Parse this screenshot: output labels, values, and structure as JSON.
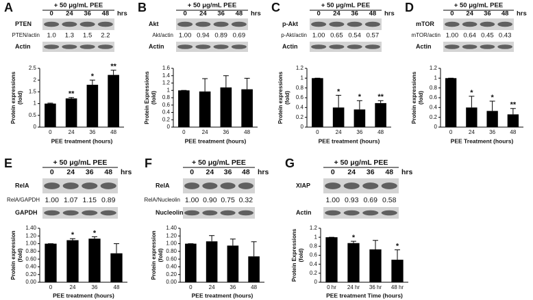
{
  "chart_data": [
    {
      "type": "bar",
      "panel": "A",
      "treatment": "+ 50 μg/mL PEE",
      "doses": [
        "0",
        "24",
        "36",
        "48"
      ],
      "unit": "hrs",
      "protein": "PTEN",
      "ratio_label": "PTEN/actin",
      "ratios": [
        "1.0",
        "1.3",
        "1.5",
        "2.2"
      ],
      "loading": "Actin",
      "categories": [
        "0",
        "24",
        "36",
        "48"
      ],
      "values": [
        1,
        1.22,
        1.8,
        2.22
      ],
      "errors": [
        0.02,
        0.04,
        0.2,
        0.2
      ],
      "stars": [
        null,
        "**",
        "*",
        "**"
      ],
      "ylabel": [
        "Protein expressions",
        "(fold)"
      ],
      "xlabel": "PEE treatment (hours)",
      "ylim": [
        0,
        2.5
      ],
      "yticks": [
        0,
        0.5,
        1,
        1.5,
        2,
        2.5
      ],
      "color": "#000000"
    },
    {
      "type": "bar",
      "panel": "B",
      "treatment": "+ 50 μg/mL PEE",
      "doses": [
        "0",
        "24",
        "36",
        "48"
      ],
      "unit": "hrs",
      "protein": "Akt",
      "ratio_label": "Akt/actin",
      "ratios": [
        "1.00",
        "0.94",
        "0.89",
        "0.69"
      ],
      "loading": "Actin",
      "categories": [
        "0",
        "24",
        "36",
        "48"
      ],
      "values": [
        1,
        0.97,
        1.08,
        1.03
      ],
      "errors": [
        0,
        0.35,
        0.32,
        0.3
      ],
      "stars": [
        null,
        null,
        null,
        null
      ],
      "ylabel": [
        "Protein Expressions",
        "(fold)"
      ],
      "xlabel": "PEE treatment  (hours)",
      "ylim": [
        0,
        1.6
      ],
      "yticks": [
        0,
        0.2,
        0.4,
        0.6,
        0.8,
        1,
        1.2,
        1.4,
        1.6
      ],
      "color": "#000000"
    },
    {
      "type": "bar",
      "panel": "C",
      "treatment": "+ 50 μg/mL PEE",
      "doses": [
        "0",
        "24",
        "36",
        "48"
      ],
      "unit": "hrs",
      "protein": "p-Akt",
      "ratio_label": "p-Akt/actin",
      "ratios": [
        "1.00",
        "0.65",
        "0.54",
        "0.57"
      ],
      "loading": "Actin",
      "categories": [
        "0",
        "24",
        "36",
        "48"
      ],
      "values": [
        1,
        0.4,
        0.36,
        0.49
      ],
      "errors": [
        0,
        0.25,
        0.18,
        0.05
      ],
      "stars": [
        null,
        "*",
        "*",
        "**"
      ],
      "ylabel": [
        "Protein expressions",
        "(fold)"
      ],
      "xlabel": "PEE treatment (hours)",
      "ylim": [
        0,
        1.2
      ],
      "yticks": [
        0,
        0.2,
        0.4,
        0.6,
        0.8,
        1,
        1.2
      ],
      "color": "#000000"
    },
    {
      "type": "bar",
      "panel": "D",
      "treatment": "+ 50 μg/mL PEE",
      "doses": [
        "0",
        "24",
        "36",
        "48"
      ],
      "unit": "hrs",
      "protein": "mTOR",
      "ratio_label": "mTOR/actin",
      "ratios": [
        "1.00",
        "0.64",
        "0.45",
        "0.43"
      ],
      "loading": "Actin",
      "categories": [
        "0",
        "24",
        "36",
        "48"
      ],
      "values": [
        1,
        0.4,
        0.33,
        0.26
      ],
      "errors": [
        0,
        0.23,
        0.2,
        0.12
      ],
      "stars": [
        null,
        "*",
        "*",
        "**"
      ],
      "ylabel": [
        "Protein expressions",
        "(fold)"
      ],
      "xlabel": "PEE Treatment (hours)",
      "ylim": [
        0,
        1.2
      ],
      "yticks": [
        0,
        0.2,
        0.4,
        0.6,
        0.8,
        1,
        1.2
      ],
      "color": "#000000"
    },
    {
      "type": "bar",
      "panel": "E",
      "treatment": "+ 50 μg/mL PEE",
      "doses": [
        "0",
        "24",
        "36",
        "48"
      ],
      "unit": "hrs",
      "protein": "RelA",
      "ratio_label": "RelA/GAPDH",
      "ratios": [
        "1.00",
        "1.07",
        "1.15",
        "0.89"
      ],
      "loading": "GAPDH",
      "categories": [
        "0",
        "24",
        "36",
        "48"
      ],
      "values": [
        1,
        1.09,
        1.13,
        0.75
      ],
      "errors": [
        0,
        0.04,
        0.05,
        0.25
      ],
      "stars": [
        null,
        "*",
        "*",
        null
      ],
      "ylabel": [
        "Protein expression",
        "(fold)"
      ],
      "xlabel": "PEE treatment (hours)",
      "ylim": [
        0,
        1.4
      ],
      "yticks": [
        {
          "value": 0,
          "label": "0.00"
        },
        {
          "value": 0.2,
          "label": "0.20"
        },
        {
          "value": 0.4,
          "label": "0.40"
        },
        {
          "value": 0.6,
          "label": "0.60"
        },
        {
          "value": 0.8,
          "label": "0.80"
        },
        {
          "value": 1,
          "label": "1.00"
        },
        {
          "value": 1.2,
          "label": "1.20"
        },
        {
          "value": 1.4,
          "label": "1.40"
        }
      ],
      "color": "#000000"
    },
    {
      "type": "bar",
      "panel": "F",
      "treatment": "+ 50 μg/mL PEE",
      "doses": [
        "0",
        "24",
        "36",
        "48"
      ],
      "unit": "hrs",
      "protein": "RelA",
      "ratio_label": "RelA/Nucleolin",
      "ratios": [
        "1.00",
        "0.90",
        "0.75",
        "0.32"
      ],
      "loading": "Nucleolin",
      "categories": [
        "0",
        "24",
        "36",
        "48"
      ],
      "values": [
        1,
        1.06,
        0.95,
        0.67
      ],
      "errors": [
        0,
        0.15,
        0.17,
        0.38
      ],
      "stars": [
        null,
        null,
        null,
        null
      ],
      "ylabel": [
        "Protein expression",
        "(fold)"
      ],
      "xlabel": "PEE treatment (hours)",
      "ylim": [
        0,
        1.4
      ],
      "yticks": [
        {
          "value": 0,
          "label": "0.00"
        },
        {
          "value": 0.2,
          "label": "0.20"
        },
        {
          "value": 0.4,
          "label": "0.40"
        },
        {
          "value": 0.6,
          "label": "0.60"
        },
        {
          "value": 0.8,
          "label": "0.80"
        },
        {
          "value": 1,
          "label": "1.00"
        },
        {
          "value": 1.2,
          "label": "1.20"
        },
        {
          "value": 1.4,
          "label": "1.40"
        }
      ],
      "color": "#000000"
    },
    {
      "type": "bar",
      "panel": "G",
      "treatment": "+ 50 μg/mL PEE",
      "doses": [
        "0",
        "24",
        "36",
        "48"
      ],
      "unit": "hrs",
      "protein": "XIAP",
      "ratio_label": null,
      "ratios": [
        "1.00",
        "0.93",
        "0.69",
        "0.58"
      ],
      "loading": "Actin",
      "categories": [
        "0 hr",
        "24 hr",
        "36 hr",
        "48 hr"
      ],
      "values": [
        1,
        0.87,
        0.73,
        0.5
      ],
      "errors": [
        0,
        0.04,
        0.2,
        0.22
      ],
      "stars": [
        null,
        "*",
        null,
        "*"
      ],
      "ylabel": [
        "Protein Expressions",
        "(fold)"
      ],
      "xlabel": "PEE treatment Time (hours)",
      "ylim": [
        0,
        1.2
      ],
      "yticks": [
        0,
        0.2,
        0.4,
        0.6,
        0.8,
        1,
        1.2
      ],
      "color": "#000000"
    }
  ]
}
